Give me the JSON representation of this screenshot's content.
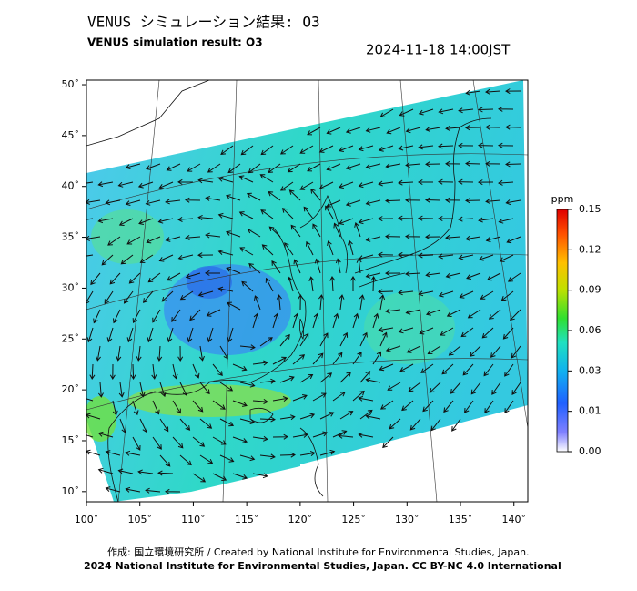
{
  "header": {
    "title": "VENUS シミュレーション結果: O3",
    "subtitle": "VENUS simulation result: O3",
    "timestamp": "2024-11-18 14:00JST"
  },
  "map": {
    "xlim": [
      100,
      141.3
    ],
    "ylim": [
      9,
      50.45
    ],
    "xticks": [
      {
        "value": 100,
        "label": "100˚"
      },
      {
        "value": 105,
        "label": "105˚"
      },
      {
        "value": 110,
        "label": "110˚"
      },
      {
        "value": 115,
        "label": "115˚"
      },
      {
        "value": 120,
        "label": "120˚"
      },
      {
        "value": 125,
        "label": "125˚"
      },
      {
        "value": 130,
        "label": "130˚"
      },
      {
        "value": 135,
        "label": "135˚"
      },
      {
        "value": 140,
        "label": "140˚"
      }
    ],
    "yticks": [
      {
        "value": 10,
        "label": "10˚"
      },
      {
        "value": 15,
        "label": "15˚"
      },
      {
        "value": 20,
        "label": "20˚"
      },
      {
        "value": 25,
        "label": "25˚"
      },
      {
        "value": 30,
        "label": "30˚"
      },
      {
        "value": 35,
        "label": "35˚"
      },
      {
        "value": 40,
        "label": "40˚"
      },
      {
        "value": 45,
        "label": "45˚"
      },
      {
        "value": 50,
        "label": "50˚"
      }
    ]
  },
  "colorbar": {
    "unit": "ppm",
    "ticks": [
      {
        "value": 0,
        "label": "0.00"
      },
      {
        "value": 0.01,
        "label": "0.01"
      },
      {
        "value": 0.03,
        "label": "0.03"
      },
      {
        "value": 0.06,
        "label": "0.06"
      },
      {
        "value": 0.09,
        "label": "0.09"
      },
      {
        "value": 0.12,
        "label": "0.12"
      },
      {
        "value": 0.15,
        "label": "0.15"
      }
    ]
  },
  "footer": {
    "credit": "作成: 国立環境研究所 / Created by National Institute for Environmental Studies, Japan.",
    "license": "2024 National Institute for Environmental Studies, Japan. CC BY-NC 4.0 International"
  }
}
